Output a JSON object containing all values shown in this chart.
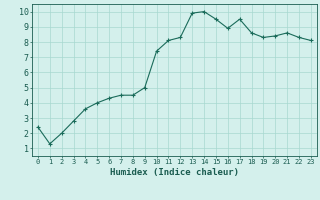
{
  "x": [
    0,
    1,
    2,
    3,
    4,
    5,
    6,
    7,
    8,
    9,
    10,
    11,
    12,
    13,
    14,
    15,
    16,
    17,
    18,
    19,
    20,
    21,
    22,
    23
  ],
  "y": [
    2.4,
    1.3,
    2.0,
    2.8,
    3.6,
    4.0,
    4.3,
    4.5,
    4.5,
    5.0,
    7.4,
    8.1,
    8.3,
    9.9,
    10.0,
    9.5,
    8.9,
    9.5,
    8.6,
    8.3,
    8.4,
    8.6,
    8.3,
    8.1
  ],
  "line_color": "#1a6b5a",
  "marker": "+",
  "bg_color": "#d4f0ec",
  "grid_color": "#a8d8d0",
  "xlabel": "Humidex (Indice chaleur)",
  "xlim": [
    -0.5,
    23.5
  ],
  "ylim": [
    0.5,
    10.5
  ],
  "yticks": [
    1,
    2,
    3,
    4,
    5,
    6,
    7,
    8,
    9,
    10
  ],
  "xticks": [
    0,
    1,
    2,
    3,
    4,
    5,
    6,
    7,
    8,
    9,
    10,
    11,
    12,
    13,
    14,
    15,
    16,
    17,
    18,
    19,
    20,
    21,
    22,
    23
  ],
  "font_color": "#1a5c50",
  "axis_color": "#1a5c50",
  "tick_fontsize": 5,
  "xlabel_fontsize": 6.5,
  "linewidth": 0.8,
  "markersize": 3,
  "markeredgewidth": 0.8
}
